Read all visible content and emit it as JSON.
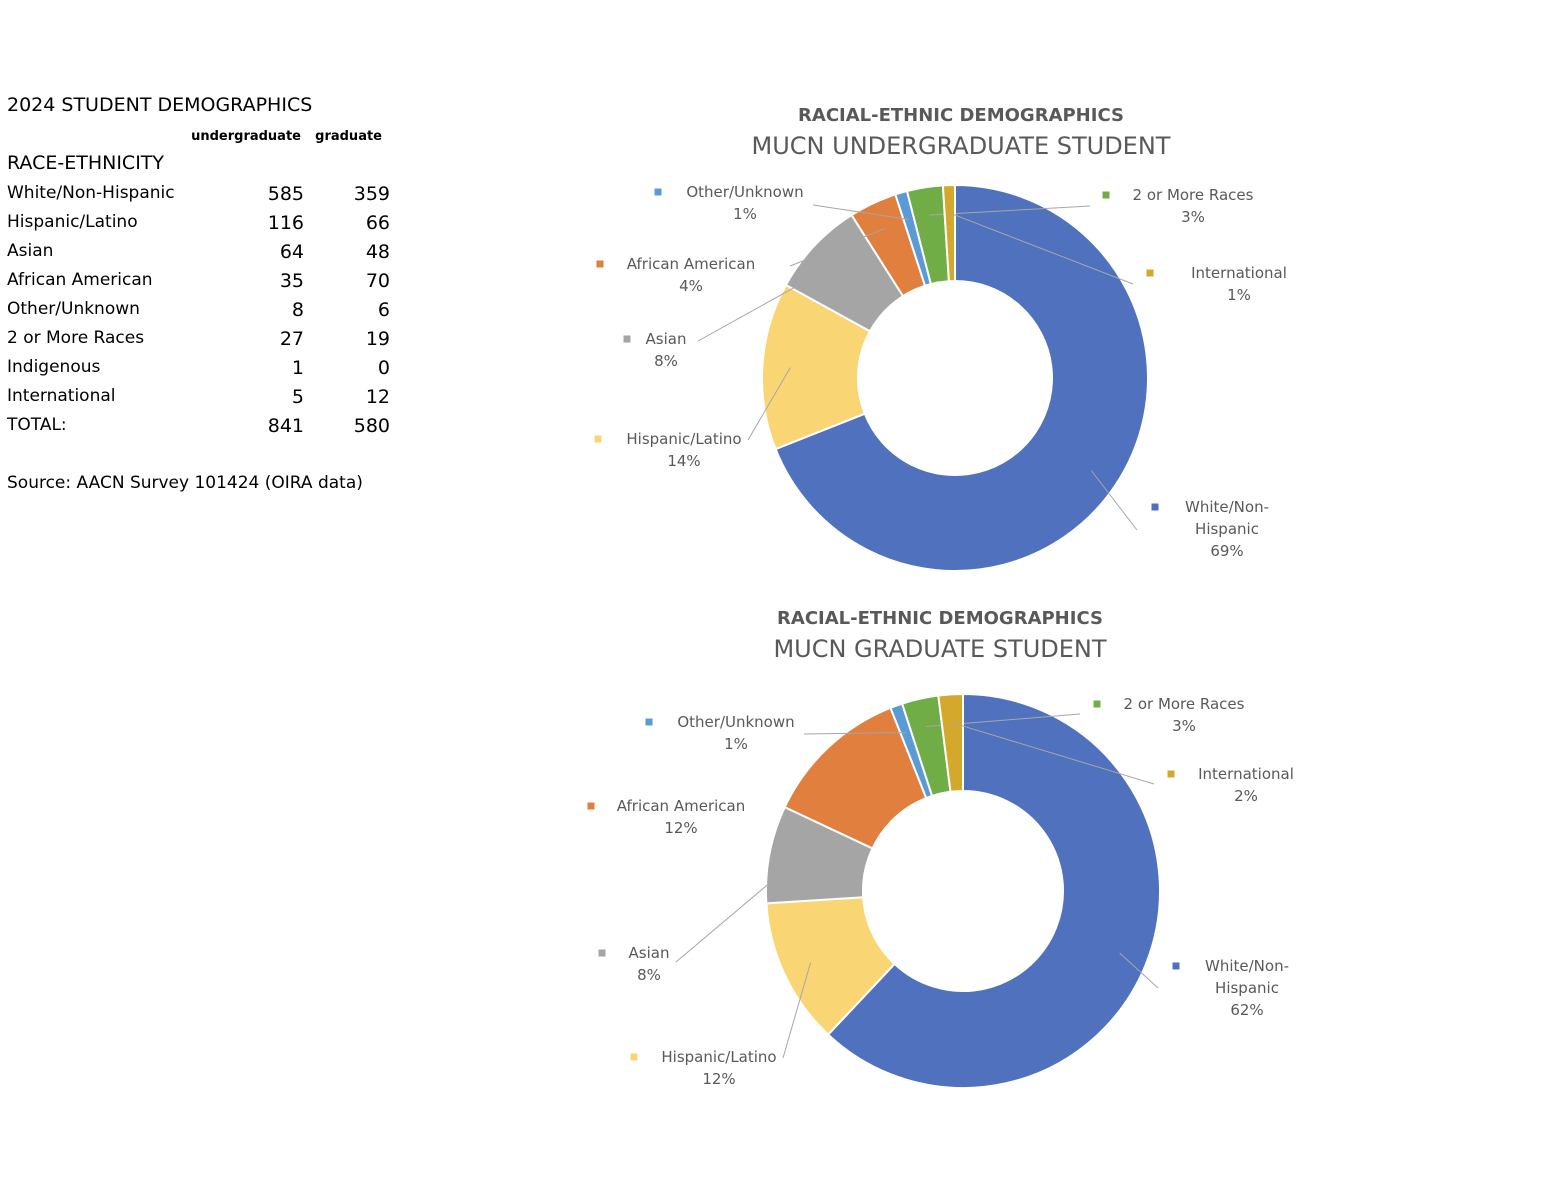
{
  "table": {
    "title": "2024 STUDENT DEMOGRAPHICS",
    "columns": [
      "undergraduate",
      "graduate"
    ],
    "section": "RACE-ETHNICITY",
    "rows": [
      [
        "White/Non-Hispanic",
        585,
        359
      ],
      [
        "Hispanic/Latino",
        116,
        66
      ],
      [
        "Asian",
        64,
        48
      ],
      [
        "African American",
        35,
        70
      ],
      [
        "Other/Unknown",
        8,
        6
      ],
      [
        "2 or More Races",
        27,
        19
      ],
      [
        "Indigenous",
        1,
        0
      ],
      [
        "International",
        5,
        12
      ]
    ],
    "total": [
      "TOTAL:",
      841,
      580
    ],
    "source": "Source: AACN Survey 101424 (OIRA data)"
  },
  "chart_data": [
    {
      "type": "pie",
      "title": "RACIAL-ETHNIC DEMOGRAPHICS",
      "subtitle": "MUCN UNDERGRADUATE STUDENT",
      "categories": [
        "White/Non-Hispanic",
        "Hispanic/Latino",
        "Asian",
        "African American",
        "Other/Unknown",
        "2 or More Races",
        "International"
      ],
      "values": [
        69,
        14,
        8,
        4,
        1,
        3,
        1
      ],
      "value_labels": [
        "69%",
        "14%",
        "8%",
        "4%",
        "1%",
        "3%",
        "1%"
      ],
      "colors": [
        "#4f71be",
        "#f9d673",
        "#a5a5a5",
        "#e07f3e",
        "#5b9bd5",
        "#70ad47",
        "#d4a82c"
      ]
    },
    {
      "type": "pie",
      "title": "RACIAL-ETHNIC DEMOGRAPHICS",
      "subtitle": "MUCN GRADUATE STUDENT",
      "categories": [
        "White/Non-Hispanic",
        "Hispanic/Latino",
        "Asian",
        "African American",
        "Other/Unknown",
        "2 or More Races",
        "International"
      ],
      "values": [
        62,
        12,
        8,
        12,
        1,
        3,
        2
      ],
      "value_labels": [
        "62%",
        "12%",
        "8%",
        "12%",
        "1%",
        "3%",
        "2%"
      ],
      "colors": [
        "#4f71be",
        "#f9d673",
        "#a5a5a5",
        "#e07f3e",
        "#5b9bd5",
        "#70ad47",
        "#d4a82c"
      ]
    }
  ]
}
